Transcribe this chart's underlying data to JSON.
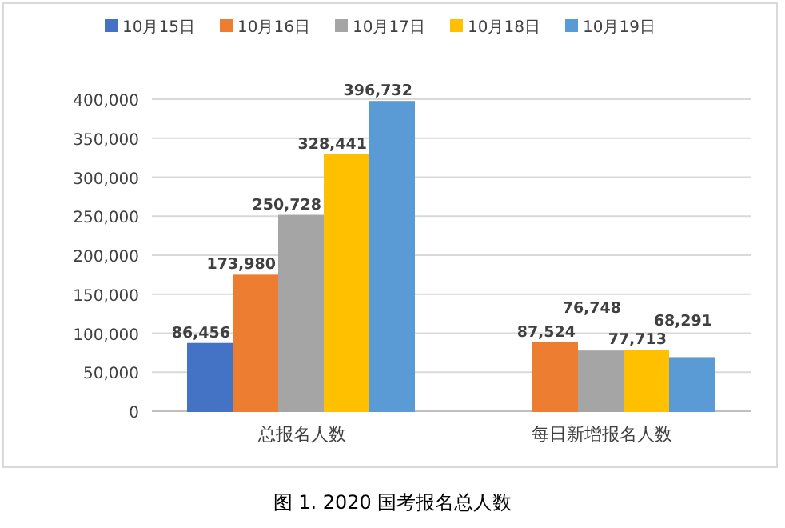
{
  "chart_data": {
    "type": "bar",
    "categories": [
      "总报名人数",
      "每日新增报名人数"
    ],
    "series": [
      {
        "name": "10月15日",
        "color": "#4472c4",
        "values": [
          86456,
          null
        ],
        "value_labels": [
          "86,456",
          null
        ]
      },
      {
        "name": "10月16日",
        "color": "#ed7d31",
        "values": [
          173980,
          87524
        ],
        "value_labels": [
          "173,980",
          "87,524"
        ]
      },
      {
        "name": "10月17日",
        "color": "#a5a5a5",
        "values": [
          250728,
          76748
        ],
        "value_labels": [
          "250,728",
          "76,748"
        ]
      },
      {
        "name": "10月18日",
        "color": "#ffc000",
        "values": [
          328441,
          77713
        ],
        "value_labels": [
          "328,441",
          "77,713"
        ]
      },
      {
        "name": "10月19日",
        "color": "#5b9bd5",
        "values": [
          396732,
          68291
        ],
        "value_labels": [
          "396,732",
          "68,291"
        ]
      }
    ],
    "ylim": [
      0,
      400000
    ],
    "yticks": [
      0,
      {
        "value": 50000,
        "label": "50,000"
      },
      {
        "value": 100000,
        "label": "100,000"
      },
      {
        "value": 150000,
        "label": "150,000"
      },
      {
        "value": 200000,
        "label": "200,000"
      },
      {
        "value": 250000,
        "label": "250,000"
      },
      {
        "value": 300000,
        "label": "300,000"
      },
      {
        "value": 350000,
        "label": "350,000"
      },
      {
        "value": 400000,
        "label": "400,000"
      }
    ],
    "grid": "y",
    "legend": "top",
    "annotations": [
      "图 1. 2020 国考报名总人数"
    ]
  }
}
